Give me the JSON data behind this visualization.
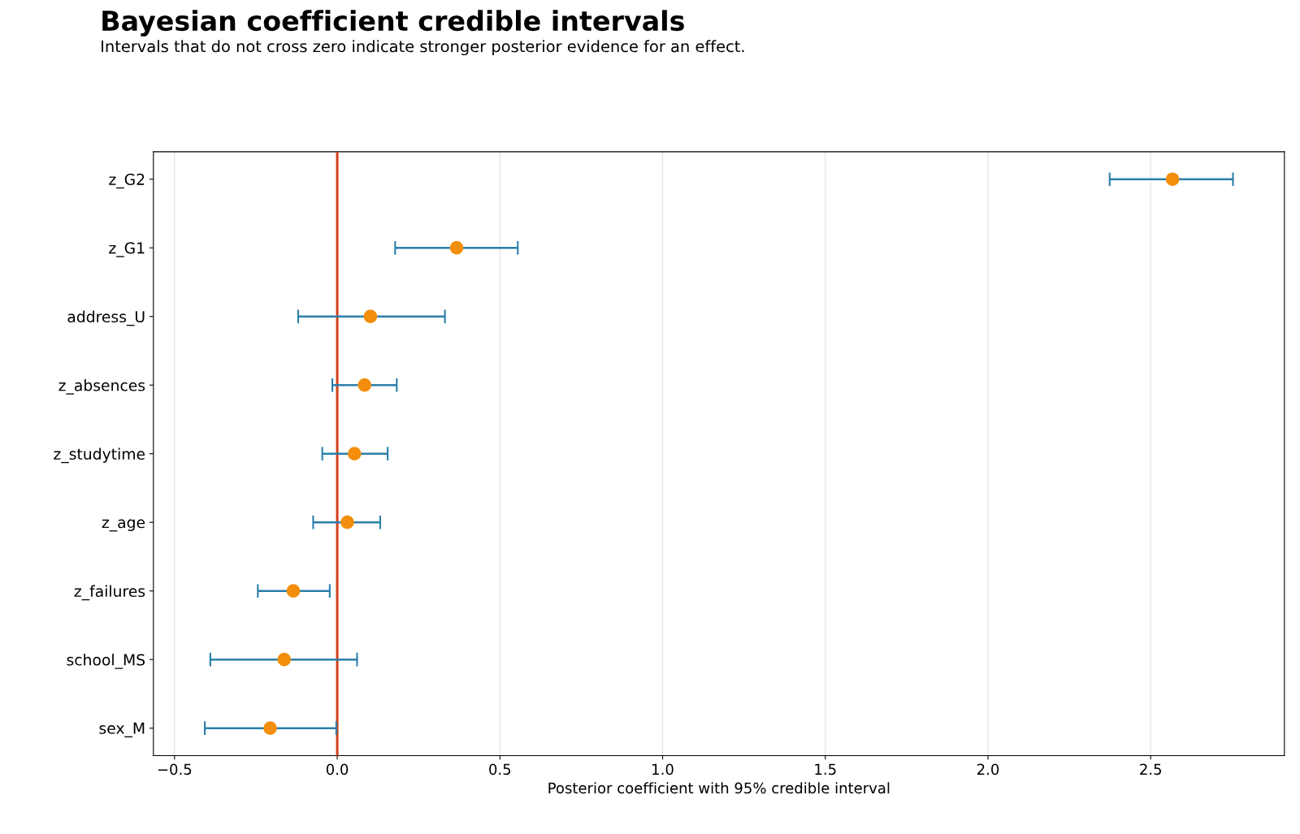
{
  "chart_data": {
    "type": "scatter",
    "orientation": "horizontal",
    "title": "Bayesian coefficient credible intervals",
    "subtitle": "Intervals that do not cross zero indicate stronger posterior evidence for an effect.",
    "xlabel": "Posterior coefficient with 95% credible interval",
    "categories": [
      "z_G2",
      "z_G1",
      "address_U",
      "z_absences",
      "z_studytime",
      "z_age",
      "z_failures",
      "school_MS",
      "sex_M"
    ],
    "color": "#f28e0b",
    "values": [
      2.567,
      0.367,
      0.102,
      0.084,
      0.053,
      0.031,
      -0.135,
      -0.163,
      -0.206
    ],
    "errors": [
      [
        2.374,
        2.753
      ],
      [
        0.178,
        0.555
      ],
      [
        -0.12,
        0.331
      ],
      [
        -0.015,
        0.183
      ],
      [
        -0.046,
        0.155
      ],
      [
        -0.074,
        0.132
      ],
      [
        -0.244,
        -0.023
      ],
      [
        -0.39,
        0.061
      ],
      [
        -0.407,
        -0.003
      ]
    ],
    "xlim": [
      -0.565,
      2.911
    ],
    "xticks": [
      {
        "value": -0.5,
        "label": "−0.5"
      },
      {
        "value": 0,
        "label": "0.0"
      },
      {
        "value": 0.5,
        "label": "0.5"
      },
      {
        "value": 1,
        "label": "1.0"
      },
      {
        "value": 1.5,
        "label": "1.5"
      },
      {
        "value": 2,
        "label": "2.0"
      },
      {
        "value": 2.5,
        "label": "2.5"
      }
    ],
    "ref_lines": [
      {
        "axis": "x",
        "value": 0,
        "color": "#d2401d"
      }
    ],
    "grid": "x",
    "marker": "circle",
    "legend": false
  }
}
